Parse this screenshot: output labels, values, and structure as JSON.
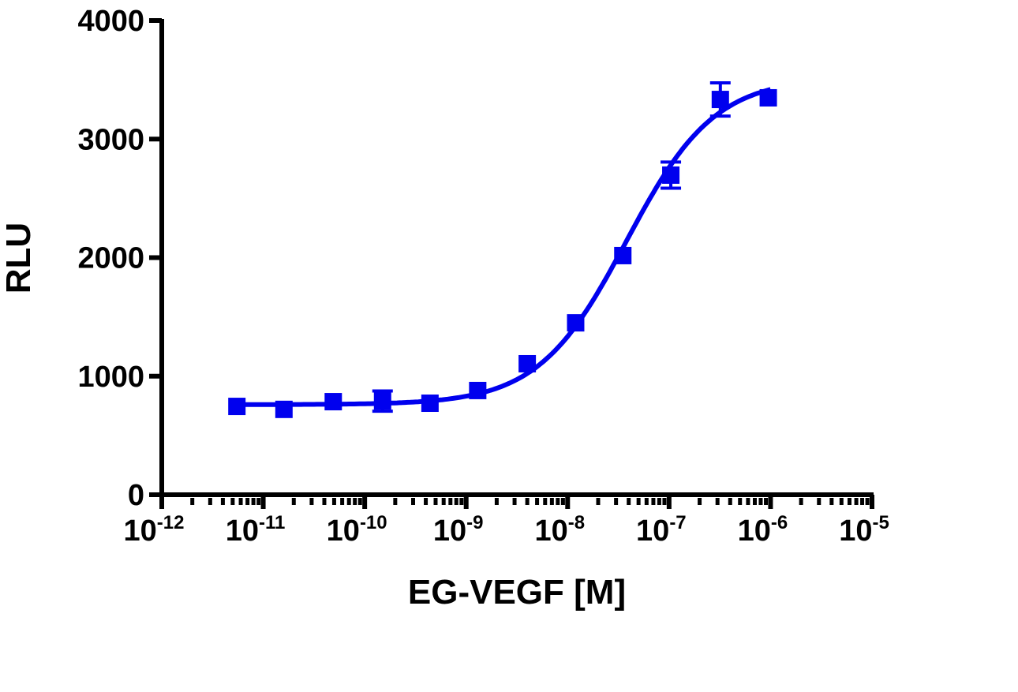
{
  "chart_data": {
    "type": "scatter",
    "title": "",
    "xlabel": "EG-VEGF [M]",
    "ylabel": "RLU",
    "x_scale": "log",
    "xlim": [
      1e-12,
      1e-05
    ],
    "ylim": [
      0,
      4000
    ],
    "grid": false,
    "x_tick_labels": [
      {
        "base": "10",
        "exp": "-12"
      },
      {
        "base": "10",
        "exp": "-11"
      },
      {
        "base": "10",
        "exp": "-10"
      },
      {
        "base": "10",
        "exp": "-9"
      },
      {
        "base": "10",
        "exp": "-8"
      },
      {
        "base": "10",
        "exp": "-7"
      },
      {
        "base": "10",
        "exp": "-6"
      },
      {
        "base": "10",
        "exp": "-5"
      }
    ],
    "y_ticks": [
      0,
      1000,
      2000,
      3000,
      4000
    ],
    "y_tick_labels": [
      "0",
      "1000",
      "2000",
      "3000",
      "4000"
    ],
    "color": "#0000ee",
    "series": [
      {
        "marker": "square",
        "x": [
          5.5e-12,
          1.6e-11,
          4.9e-11,
          1.5e-10,
          4.4e-10,
          1.3e-09,
          4e-09,
          1.2e-08,
          3.5e-08,
          1.04e-07,
          3.2e-07,
          9.5e-07
        ],
        "y": [
          745,
          720,
          785,
          790,
          772,
          879,
          1105,
          1450,
          2017,
          2696,
          3334,
          3348
        ],
        "error": [
          0,
          0,
          0,
          85,
          0,
          0,
          0,
          0,
          0,
          110,
          140,
          0
        ]
      }
    ],
    "fit": {
      "type": "sigmoidal dose-response",
      "bottom": 760,
      "top": 3520,
      "log_ec50": -7.42,
      "hill": 1.0,
      "x_range": [
        5.5e-12,
        1e-06
      ]
    },
    "legend": "none"
  }
}
